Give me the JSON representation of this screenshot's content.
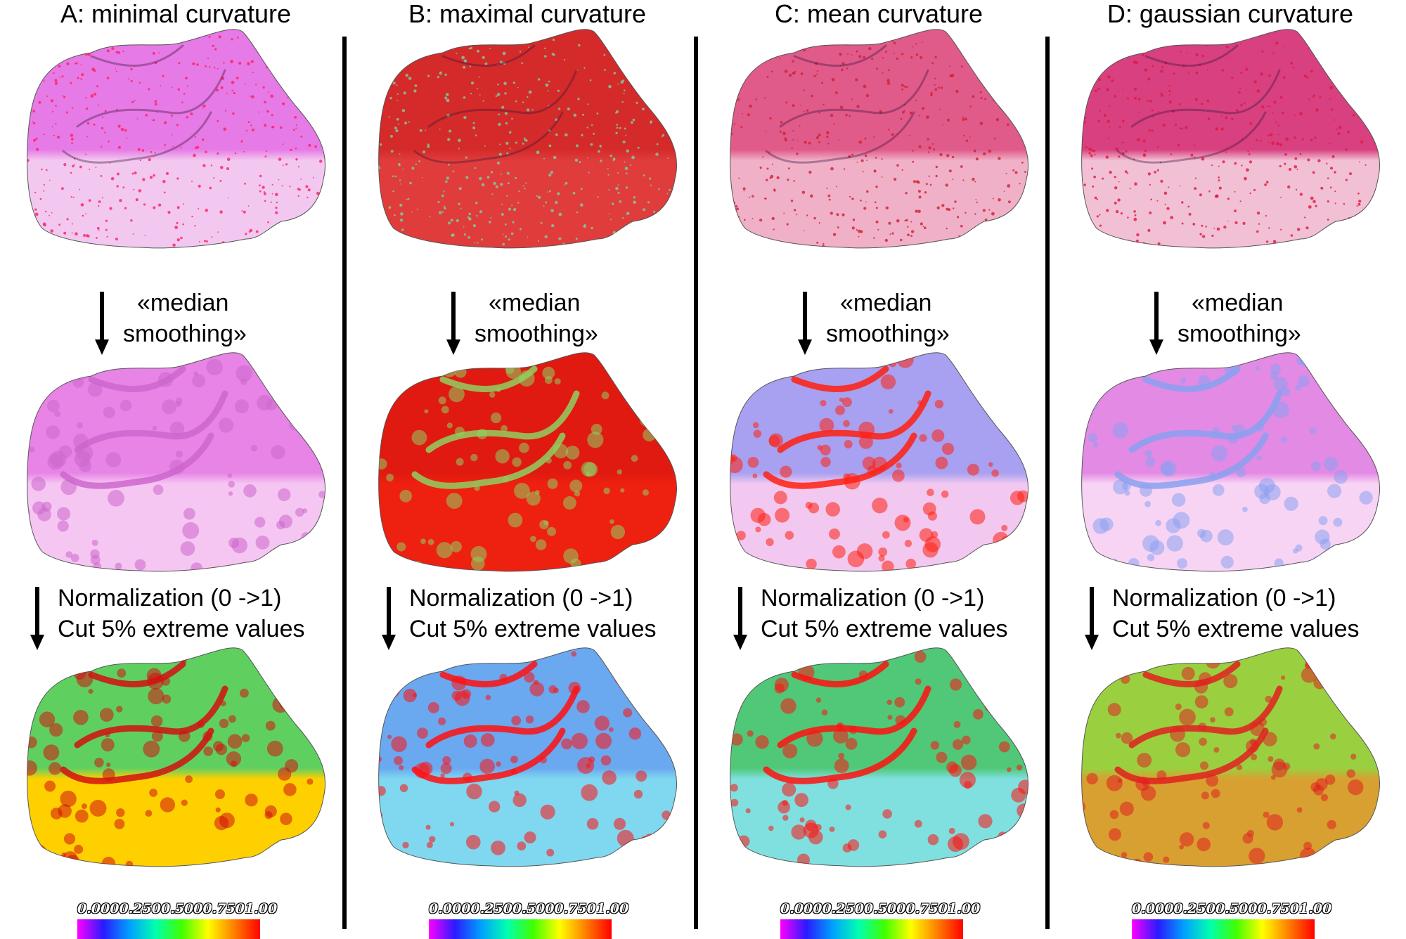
{
  "panels": [
    {
      "title": "A: minimal curvature",
      "step1": [
        "«median",
        "smoothing»"
      ],
      "step2": [
        "Normalization (0 ->1)",
        "Cut 5% extreme values"
      ],
      "tooth_colors": {
        "raw": [
          "#e67ae6",
          "#f2c8f0",
          "#ff2060"
        ],
        "smoothed": [
          "#e784e6",
          "#f5c6f2",
          "#cc66cc"
        ],
        "normalized": [
          "#5fd060",
          "#ffd000",
          "#d21010"
        ]
      }
    },
    {
      "title": "B: maximal curvature",
      "step1": [
        "«median",
        "smoothing»"
      ],
      "step2": [
        "Normalization (0 ->1)",
        "Cut 5% extreme values"
      ],
      "tooth_colors": {
        "raw": [
          "#d52a2a",
          "#e03c3c",
          "#7ad0a0"
        ],
        "smoothed": [
          "#e01a10",
          "#ee2010",
          "#8fd060"
        ],
        "normalized": [
          "#6aa8f0",
          "#7fd8f0",
          "#ff1010"
        ]
      }
    },
    {
      "title": "C: mean curvature",
      "step1": [
        "«median",
        "smoothing»"
      ],
      "step2": [
        "Normalization (0 ->1)",
        "Cut 5% extreme values"
      ],
      "tooth_colors": {
        "raw": [
          "#e05a8a",
          "#f0b0c8",
          "#d02030"
        ],
        "smoothed": [
          "#a8a0f0",
          "#f2c8f0",
          "#ff2010"
        ],
        "normalized": [
          "#50c878",
          "#80e0e0",
          "#ff1010"
        ]
      }
    },
    {
      "title": "D: gaussian curvature",
      "step1": [
        "«median",
        "smoothing»"
      ],
      "step2": [
        "Normalization (0 ->1)",
        "Cut 5% extreme values"
      ],
      "tooth_colors": {
        "raw": [
          "#d84080",
          "#f2c0d4",
          "#e01840"
        ],
        "smoothed": [
          "#e38ae4",
          "#f8d4f4",
          "#8aa0f0"
        ],
        "normalized": [
          "#9ad040",
          "#d8a030",
          "#e02020"
        ]
      }
    }
  ],
  "scale": {
    "ticks": [
      "0.000",
      "0.250",
      "0.500",
      "0.750",
      "1.00"
    ],
    "gradient": [
      "#ff00ff",
      "#2a1aff",
      "#00a0ff",
      "#00ffb0",
      "#40ff00",
      "#ffff00",
      "#ff8000",
      "#ff0000"
    ]
  }
}
